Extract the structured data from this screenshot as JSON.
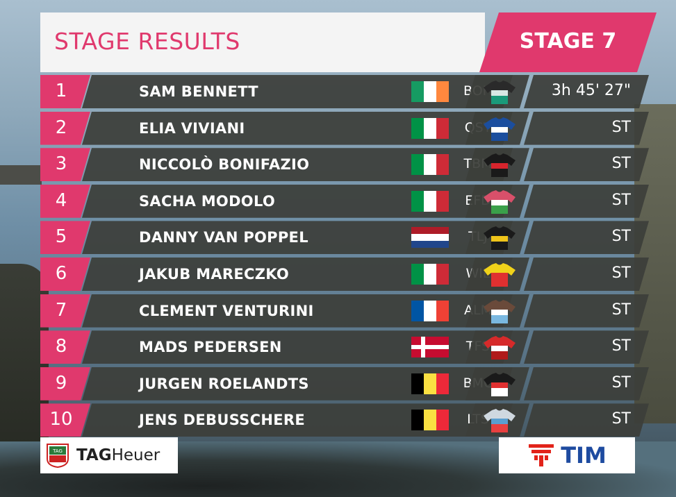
{
  "header": {
    "title": "STAGE RESULTS",
    "stage": "STAGE 7"
  },
  "colors": {
    "accent": "#e0396d",
    "panel": "#3c3e3a",
    "brand_tim": "#1e4ba0"
  },
  "results": [
    {
      "pos": "1",
      "name": "SAM BENNETT",
      "flag": "ireland",
      "team": "BOH",
      "jersey": "jersey-boh",
      "time": "3h 45' 27\""
    },
    {
      "pos": "2",
      "name": "ELIA VIVIANI",
      "flag": "italy",
      "team": "QST",
      "jersey": "jersey-qst",
      "time": "ST"
    },
    {
      "pos": "3",
      "name": "NICCOLÒ BONIFAZIO",
      "flag": "italy",
      "team": "TBM",
      "jersey": "jersey-tbm",
      "time": "ST"
    },
    {
      "pos": "4",
      "name": "SACHA MODOLO",
      "flag": "italy",
      "team": "EFD",
      "jersey": "jersey-efd",
      "time": "ST"
    },
    {
      "pos": "5",
      "name": "DANNY VAN POPPEL",
      "flag": "netherlands",
      "team": "TLJ",
      "jersey": "jersey-tlj",
      "time": "ST"
    },
    {
      "pos": "6",
      "name": "JAKUB MARECZKO",
      "flag": "italy",
      "team": "WIL",
      "jersey": "jersey-wil",
      "time": "ST"
    },
    {
      "pos": "7",
      "name": "CLEMENT VENTURINI",
      "flag": "france",
      "team": "ALM",
      "jersey": "jersey-alm",
      "time": "ST"
    },
    {
      "pos": "8",
      "name": "MADS PEDERSEN",
      "flag": "denmark",
      "team": "TFS",
      "jersey": "jersey-tfs",
      "time": "ST"
    },
    {
      "pos": "9",
      "name": "JURGEN ROELANDTS",
      "flag": "belgium",
      "team": "BMC",
      "jersey": "jersey-bmc",
      "time": "ST"
    },
    {
      "pos": "10",
      "name": "JENS DEBUSSCHERE",
      "flag": "belgium",
      "team": "LTS",
      "jersey": "jersey-lts",
      "time": "ST"
    }
  ],
  "sponsors": {
    "left": {
      "name_bold": "TAG",
      "name_rest": "Heuer",
      "logo_text": "TAG HEUER"
    },
    "right": {
      "name": "TIM"
    }
  }
}
